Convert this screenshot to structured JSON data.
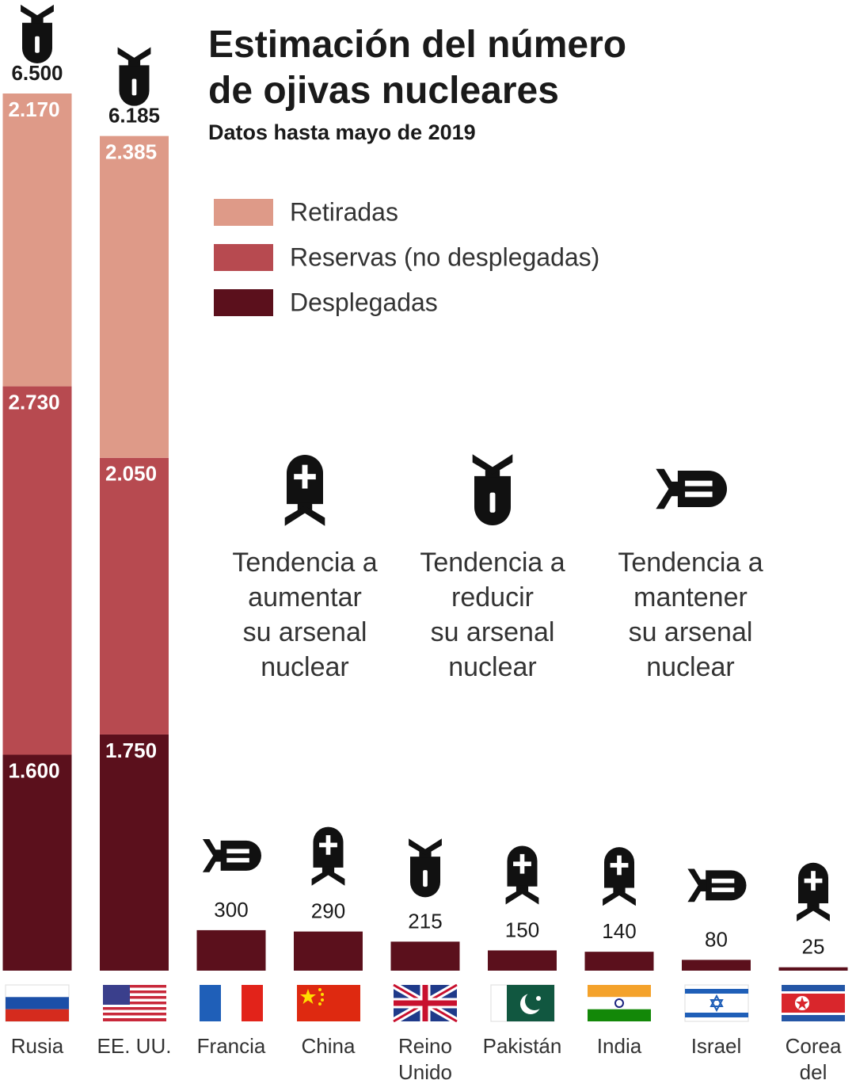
{
  "chart_data": {
    "type": "bar",
    "title": "Estimación del número\nde ojivas nucleares",
    "subtitle": "Datos hasta mayo de 2019",
    "categories": [
      "Rusia",
      "EE. UU.",
      "Francia",
      "China",
      "Reino\nUnido",
      "Pakistán",
      "India",
      "Israel",
      "Corea\ndel Norte"
    ],
    "series": [
      {
        "name": "Retiradas",
        "color": "#de9a88",
        "values": [
          2170,
          2385,
          null,
          null,
          null,
          null,
          null,
          null,
          null
        ],
        "value_labels": [
          "2.170",
          "2.385",
          null,
          null,
          null,
          null,
          null,
          null,
          null
        ]
      },
      {
        "name": "Reservas (no desplegadas)",
        "color": "#b74a50",
        "values": [
          2730,
          2050,
          null,
          null,
          null,
          null,
          null,
          null,
          null
        ],
        "value_labels": [
          "2.730",
          "2.050",
          null,
          null,
          null,
          null,
          null,
          null,
          null
        ]
      },
      {
        "name": "Desplegadas",
        "color": "#5b101c",
        "values": [
          1600,
          1750,
          null,
          null,
          null,
          null,
          null,
          null,
          null
        ],
        "value_labels": [
          "1.600",
          "1.750",
          null,
          null,
          null,
          null,
          null,
          null,
          null
        ]
      }
    ],
    "totals": {
      "values": [
        6500,
        6185,
        300,
        290,
        215,
        150,
        140,
        80,
        25
      ],
      "value_labels": [
        "6.500",
        "6.185",
        "300",
        "290",
        "215",
        "150",
        "140",
        "80",
        "25"
      ]
    },
    "trend_legend": [
      "Tendencia a\naumentar\nsu arsenal\nnuclear",
      "Tendencia a\nreducir\nsu arsenal\nnuclear",
      "Tendencia a\nmantener\nsu arsenal\nnuclear"
    ],
    "trend": [
      1,
      1,
      2,
      0,
      1,
      0,
      0,
      2,
      0
    ]
  }
}
